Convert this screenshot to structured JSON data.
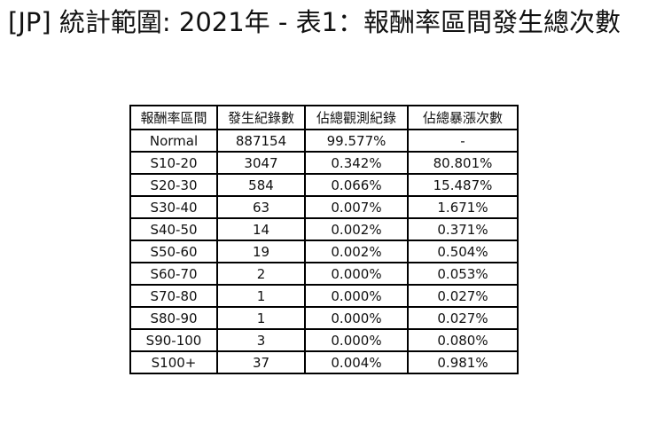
{
  "page": {
    "title": "[JP] 統計範圍: 2021年 - 表1：報酬率區間發生總次數"
  },
  "colors": {
    "background": "#ffffff",
    "text": "#111111",
    "table_border": "#000000"
  },
  "chart_data": {
    "type": "table",
    "title": "[JP] 統計範圍: 2021年 - 表1：報酬率區間發生總次數",
    "headers": [
      "報酬率區間",
      "發生紀錄數",
      "佔總觀測紀錄",
      "佔總暴漲次數"
    ],
    "rows": [
      [
        "Normal",
        "887154",
        "99.577%",
        "-"
      ],
      [
        "S10-20",
        "3047",
        "0.342%",
        "80.801%"
      ],
      [
        "S20-30",
        "584",
        "0.066%",
        "15.487%"
      ],
      [
        "S30-40",
        "63",
        "0.007%",
        "1.671%"
      ],
      [
        "S40-50",
        "14",
        "0.002%",
        "0.371%"
      ],
      [
        "S50-60",
        "19",
        "0.002%",
        "0.504%"
      ],
      [
        "S60-70",
        "2",
        "0.000%",
        "0.053%"
      ],
      [
        "S70-80",
        "1",
        "0.000%",
        "0.027%"
      ],
      [
        "S80-90",
        "1",
        "0.000%",
        "0.027%"
      ],
      [
        "S90-100",
        "3",
        "0.000%",
        "0.080%"
      ],
      [
        "S100+",
        "37",
        "0.004%",
        "0.981%"
      ]
    ]
  }
}
